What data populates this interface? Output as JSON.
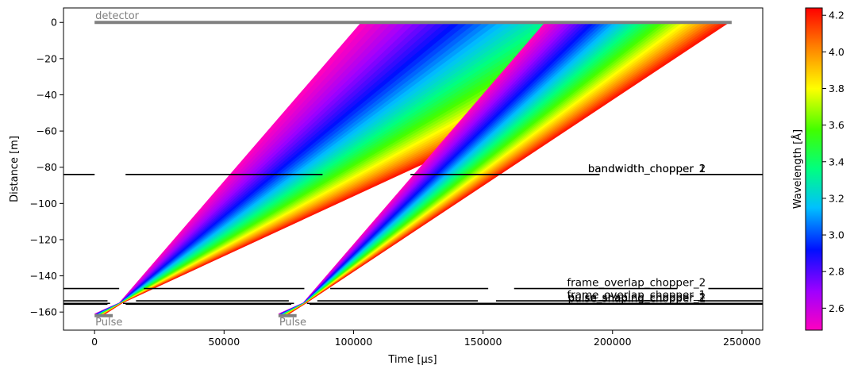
{
  "chart_data": {
    "type": "line",
    "xlabel": "Time [µs]",
    "ylabel": "Distance [m]",
    "xlim": [
      -12000,
      258000
    ],
    "ylim": [
      -170,
      8
    ],
    "xticks": [
      0,
      50000,
      100000,
      150000,
      200000,
      250000
    ],
    "xtick_labels": [
      "0",
      "50000",
      "100000",
      "150000",
      "200000",
      "250000"
    ],
    "yticks": [
      0,
      -20,
      -40,
      -60,
      -80,
      -100,
      -120,
      -140,
      -160
    ],
    "ytick_labels": [
      "0",
      "−20",
      "−40",
      "−60",
      "−80",
      "−100",
      "−120",
      "−140",
      "−160"
    ],
    "colorbar": {
      "label": "Wavelength [Å]",
      "range": [
        2.48,
        4.24
      ],
      "ticks": [
        2.6,
        2.8,
        3.0,
        3.2,
        3.4,
        3.6,
        3.8,
        4.0,
        4.2
      ],
      "tick_labels": [
        "2.6",
        "2.8",
        "3.0",
        "3.2",
        "3.4",
        "3.6",
        "3.8",
        "4.0",
        "4.2"
      ],
      "colormap": "gist_rainbow"
    },
    "detector": {
      "label": "detector",
      "distance": 0,
      "t_start": 0,
      "t_end": 246000,
      "color": "#808080"
    },
    "pulses": [
      {
        "label": "Pulse",
        "t_start": 0,
        "t_end": 7000,
        "distance": -162,
        "color": "#808080"
      },
      {
        "label": "Pulse",
        "t_start": 71000,
        "t_end": 78000,
        "distance": -162,
        "color": "#808080"
      }
    ],
    "frames": [
      {
        "focus_time": 9500,
        "focus_distance": -155,
        "arrival_start": 103000,
        "arrival_end": 245000
      },
      {
        "focus_time": 80500,
        "focus_distance": -155,
        "arrival_start": 174000,
        "arrival_end": 245000
      }
    ],
    "choppers": [
      {
        "label": "bandwidth_chopper_1",
        "distance": -84,
        "openings": [
          [
            0,
            12000
          ],
          [
            88000,
            122000
          ],
          [
            195000,
            226000
          ]
        ]
      },
      {
        "label": "bandwidth_chopper_2",
        "distance": -84,
        "openings": [
          [
            0,
            12000
          ],
          [
            88000,
            122000
          ],
          [
            195000,
            226000
          ]
        ]
      },
      {
        "label": "frame_overlap_chopper_2",
        "distance": -147,
        "openings": [
          [
            9500,
            19000
          ],
          [
            81000,
            91000
          ],
          [
            152000,
            162000
          ],
          [
            225000,
            237000
          ]
        ]
      },
      {
        "label": "frame_overlap_chopper_1",
        "distance": -153.8,
        "openings": [
          [
            5000,
            16000
          ],
          [
            75000,
            86000
          ],
          [
            148000,
            155000
          ],
          [
            220000,
            233000
          ]
        ]
      },
      {
        "label": "pulse_shaping_chopper_1",
        "distance": -155.7,
        "openings": [
          [
            5000,
            12000
          ],
          [
            76000,
            83000
          ]
        ]
      },
      {
        "label": "pulse_shaping_chopper_2",
        "distance": -155.2,
        "openings": [
          [
            6000,
            11000
          ],
          [
            77000,
            82000
          ]
        ]
      }
    ],
    "chopper_label_time": 236000
  }
}
